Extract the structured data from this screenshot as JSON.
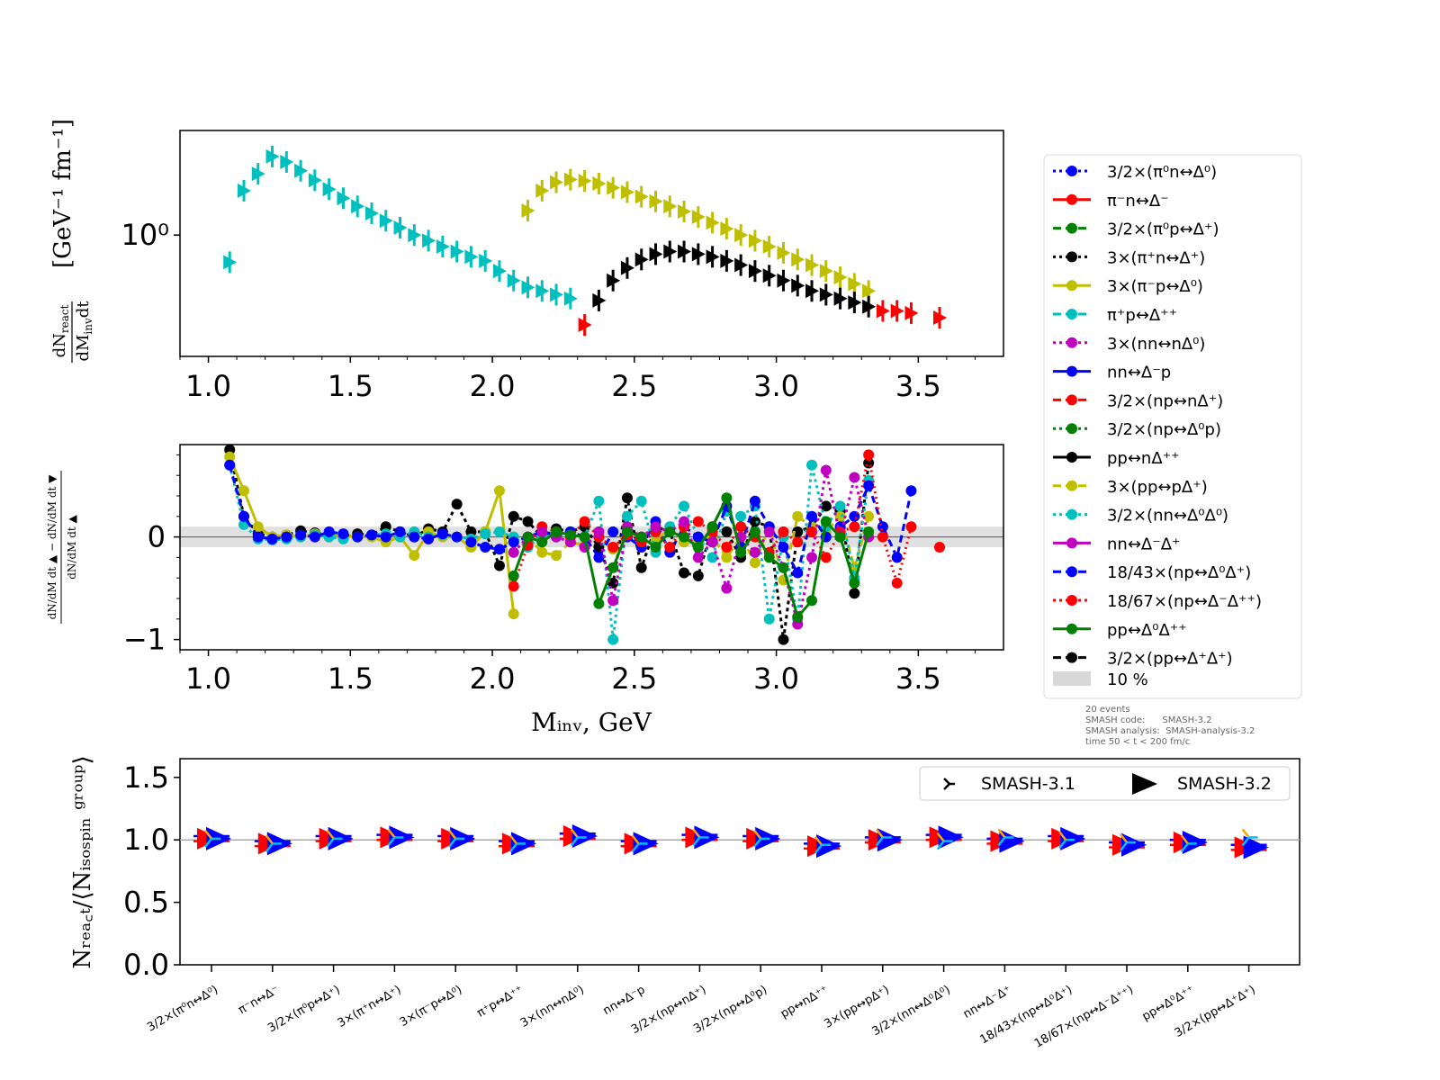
{
  "chart_data": [
    {
      "panel": "top",
      "type": "scatter",
      "ylabel_math": [
        "dN",
        "react",
        "dM",
        "inv",
        "dt"
      ],
      "yunits": "[GeV⁻¹ fm⁻¹]",
      "yscale": "log",
      "xlim": [
        0.9,
        3.8
      ],
      "ylim": [
        0.33,
        2.6
      ],
      "xticks": [
        "1.0",
        "1.5",
        "2.0",
        "2.5",
        "3.0",
        "3.5"
      ],
      "ytick_label": "10⁰",
      "ytick_value": 1.0,
      "series_groups": [
        {
          "color": "#00bfbf",
          "x": [
            1.075,
            1.125,
            1.175,
            1.225,
            1.275,
            1.325,
            1.375,
            1.425,
            1.475,
            1.525,
            1.575,
            1.625,
            1.675,
            1.725,
            1.775,
            1.825,
            1.875,
            1.925,
            1.975,
            2.025,
            2.075,
            2.125,
            2.175,
            2.225,
            2.275
          ],
          "y": [
            0.78,
            1.5,
            1.75,
            2.05,
            1.95,
            1.8,
            1.65,
            1.52,
            1.4,
            1.3,
            1.22,
            1.14,
            1.07,
            1.0,
            0.95,
            0.9,
            0.86,
            0.82,
            0.79,
            0.72,
            0.66,
            0.62,
            0.6,
            0.58,
            0.56
          ]
        },
        {
          "color": "#bfbf00",
          "x": [
            2.125,
            2.175,
            2.225,
            2.275,
            2.325,
            2.375,
            2.425,
            2.475,
            2.525,
            2.575,
            2.625,
            2.675,
            2.725,
            2.775,
            2.825,
            2.875,
            2.925,
            2.975,
            3.025,
            3.075,
            3.125,
            3.175,
            3.225,
            3.275,
            3.325
          ],
          "y": [
            1.25,
            1.5,
            1.62,
            1.66,
            1.64,
            1.6,
            1.54,
            1.48,
            1.42,
            1.36,
            1.3,
            1.24,
            1.18,
            1.12,
            1.06,
            1.0,
            0.95,
            0.9,
            0.85,
            0.8,
            0.76,
            0.72,
            0.68,
            0.64,
            0.6
          ]
        },
        {
          "color": "#000000",
          "x": [
            2.375,
            2.425,
            2.475,
            2.525,
            2.575,
            2.625,
            2.675,
            2.725,
            2.775,
            2.825,
            2.875,
            2.925,
            2.975,
            3.025,
            3.075,
            3.125,
            3.175,
            3.225,
            3.275,
            3.325
          ],
          "y": [
            0.55,
            0.66,
            0.74,
            0.8,
            0.84,
            0.86,
            0.86,
            0.84,
            0.82,
            0.79,
            0.76,
            0.72,
            0.69,
            0.66,
            0.63,
            0.6,
            0.58,
            0.56,
            0.54,
            0.52
          ]
        },
        {
          "color": "#ff0000",
          "x": [
            2.325,
            3.375,
            3.425,
            3.475,
            3.575
          ],
          "y": [
            0.44,
            0.5,
            0.5,
            0.49,
            0.47
          ]
        }
      ]
    },
    {
      "panel": "middle",
      "type": "line",
      "xlabel": "Mᵢₙᵥ, GeV",
      "xlim": [
        0.9,
        3.8
      ],
      "ylim": [
        -1.1,
        0.9
      ],
      "xticks": [
        "1.0",
        "1.5",
        "2.0",
        "2.5",
        "3.0",
        "3.5"
      ],
      "yticks": [
        {
          "label": "0",
          "value": 0
        },
        {
          "label": "−1",
          "value": -1
        }
      ],
      "band": [
        -0.1,
        0.1
      ],
      "series": [
        {
          "color": "#000000",
          "x": [
            1.075,
            1.125,
            1.175,
            1.225,
            1.275,
            1.325,
            1.375,
            1.425,
            1.475,
            1.525,
            1.575,
            1.625,
            1.675,
            1.725,
            1.775,
            1.825,
            1.875,
            1.925,
            1.975,
            2.025,
            2.075,
            2.125,
            2.175,
            2.225,
            2.275,
            2.325,
            2.375,
            2.425,
            2.475,
            2.525,
            2.575,
            2.625,
            2.675,
            2.725,
            2.775,
            2.825,
            2.875,
            2.925,
            2.975,
            3.025,
            3.075,
            3.125,
            3.175,
            3.225,
            3.275,
            3.325
          ],
          "y": [
            0.85,
            0.2,
            0.03,
            0.0,
            0.02,
            0.06,
            0.04,
            0.02,
            0.0,
            0.03,
            0.02,
            0.1,
            0.05,
            0.0,
            0.08,
            0.05,
            0.32,
            0.05,
            0.05,
            -0.28,
            0.2,
            0.15,
            0.0,
            0.08,
            0.05,
            0.1,
            -0.1,
            -0.45,
            0.38,
            -0.3,
            0.1,
            0.05,
            -0.35,
            -0.38,
            0.1,
            0.05,
            -0.2,
            0.15,
            0.1,
            -1.0,
            0.05,
            0.1,
            0.3,
            0.25,
            -0.55,
            0.72
          ]
        },
        {
          "color": "#bfbf00",
          "x": [
            1.075,
            1.125,
            1.175,
            1.225,
            1.275,
            1.325,
            1.375,
            1.425,
            1.475,
            1.525,
            1.575,
            1.625,
            1.675,
            1.725,
            1.775,
            1.825,
            1.875,
            1.925,
            1.975,
            2.025,
            2.075
          ],
          "y": [
            0.78,
            0.45,
            0.1,
            0.0,
            0.02,
            0.0,
            0.03,
            0.0,
            0.02,
            0.0,
            0.0,
            -0.05,
            0.0,
            -0.18,
            0.05,
            0.0,
            0.0,
            -0.1,
            0.05,
            0.45,
            -0.75
          ]
        },
        {
          "color": "#bfbf00",
          "x": [
            2.125,
            2.175,
            2.225,
            2.275,
            2.325,
            2.375,
            2.425,
            2.475,
            2.525,
            2.575,
            2.625,
            2.675,
            2.725,
            2.775,
            2.825,
            2.875,
            2.925,
            2.975,
            3.025,
            3.075,
            3.125,
            3.175,
            3.225,
            3.275,
            3.325
          ],
          "y": [
            0.0,
            -0.15,
            -0.18,
            -0.05,
            -0.08,
            0.0,
            -0.12,
            0.05,
            0.0,
            -0.05,
            0.1,
            -0.05,
            -0.05,
            0.0,
            -0.2,
            0.0,
            -0.25,
            0.1,
            -0.42,
            0.2,
            0.1,
            0.05,
            0.2,
            -0.3,
            0.2
          ]
        },
        {
          "color": "#00bfbf",
          "x": [
            1.075,
            1.125,
            1.175,
            1.225,
            1.275,
            1.325,
            1.375,
            1.425,
            1.475,
            1.525,
            1.575,
            1.625,
            1.675,
            1.725,
            1.775,
            1.825,
            1.875,
            1.925,
            1.975,
            2.025,
            2.075,
            2.125,
            2.175,
            2.225,
            2.275,
            2.325,
            2.375,
            2.425,
            2.475,
            2.525,
            2.575,
            2.625,
            2.675,
            2.725,
            2.775,
            2.825,
            2.875,
            2.925,
            2.975,
            3.025,
            3.075,
            3.125,
            3.175,
            3.225,
            3.275,
            3.325
          ],
          "y": [
            0.7,
            0.12,
            -0.02,
            -0.03,
            -0.02,
            0.0,
            0.02,
            0.0,
            -0.02,
            0.0,
            0.02,
            0.03,
            0.0,
            0.05,
            0.0,
            0.02,
            0.0,
            -0.02,
            0.03,
            0.05,
            0.0,
            -0.1,
            0.02,
            0.0,
            0.05,
            0.0,
            0.35,
            -1.0,
            0.2,
            0.35,
            -0.15,
            0.1,
            0.3,
            0.0,
            -0.2,
            0.25,
            0.2,
            0.3,
            -0.8,
            0.0,
            -0.8,
            0.7,
            0.1,
            0.3,
            -0.4,
            0.55
          ]
        },
        {
          "color": "#0000ff",
          "x": [
            1.075,
            1.125,
            1.175,
            1.225,
            1.275,
            1.325,
            1.375,
            1.425,
            1.475,
            1.525,
            1.575,
            1.625,
            1.675,
            1.725,
            1.775,
            1.825,
            1.875,
            1.925,
            1.975,
            2.025,
            2.075,
            2.125,
            2.175,
            2.225,
            2.275,
            2.325,
            2.375,
            2.425,
            2.475,
            2.525,
            2.575,
            2.625,
            2.675,
            2.725,
            2.775,
            2.825,
            2.875,
            2.925,
            2.975,
            3.025,
            3.075,
            3.125,
            3.175,
            3.225,
            3.275,
            3.325,
            3.375,
            3.425,
            3.475
          ],
          "y": [
            0.7,
            0.2,
            0.0,
            -0.02,
            0.0,
            0.02,
            0.0,
            0.05,
            0.03,
            0.0,
            0.02,
            0.0,
            0.05,
            0.0,
            -0.02,
            0.03,
            0.0,
            -0.05,
            -0.1,
            -0.12,
            -0.05,
            0.0,
            0.05,
            0.02,
            0.05,
            0.0,
            -0.2,
            0.05,
            0.0,
            -0.1,
            0.15,
            -0.15,
            0.1,
            0.0,
            -0.05,
            0.3,
            -0.1,
            0.35,
            0.1,
            -0.1,
            -0.35,
            0.2,
            0.0,
            0.1,
            0.2,
            0.5,
            0.1,
            -0.2,
            0.45
          ]
        },
        {
          "color": "#ff0000",
          "x": [
            2.075,
            2.125,
            2.175,
            2.225,
            2.275,
            2.325,
            2.375,
            2.425,
            2.475,
            2.525,
            2.575,
            2.625,
            2.675,
            2.725,
            2.775,
            2.825,
            2.875,
            2.925,
            2.975,
            3.025,
            3.075,
            3.125,
            3.175,
            3.225,
            3.275,
            3.325,
            3.375,
            3.425,
            3.475,
            3.525,
            3.575
          ],
          "y": [
            -0.48,
            -0.08,
            0.1,
            0.05,
            0.0,
            0.15,
            0.0,
            -0.1,
            0.02,
            -0.05,
            0.05,
            -0.1,
            0.1,
            0.15,
            0.05,
            -0.1,
            0.1,
            0.0,
            -0.15,
            0.05,
            -0.05,
            0.05,
            -0.2,
            0.05,
            0.1,
            0.8,
            0.0,
            -0.45,
            0.1,
            null,
            -0.1
          ]
        },
        {
          "color": "#bf00bf",
          "x": [
            2.075,
            2.125,
            2.175,
            2.225,
            2.275,
            2.325,
            2.375,
            2.425,
            2.475,
            2.525,
            2.575,
            2.625,
            2.675,
            2.725,
            2.775,
            2.825,
            2.875,
            2.925,
            2.975,
            3.025,
            3.075,
            3.125,
            3.175,
            3.225,
            3.275,
            3.325
          ],
          "y": [
            -0.15,
            0.0,
            0.05,
            0.0,
            -0.05,
            -0.1,
            0.05,
            -0.62,
            0.1,
            0.0,
            0.1,
            0.05,
            0.15,
            -0.2,
            -0.05,
            -0.5,
            0.0,
            -0.15,
            0.05,
            -0.3,
            -0.85,
            -0.2,
            0.65,
            0.0,
            0.58,
            0.0
          ]
        },
        {
          "color": "#008000",
          "x": [
            2.075,
            2.125,
            2.175,
            2.225,
            2.275,
            2.325,
            2.375,
            2.425,
            2.475,
            2.525,
            2.575,
            2.625,
            2.675,
            2.725,
            2.775,
            2.825,
            2.875,
            2.925,
            2.975,
            3.025,
            3.075,
            3.125,
            3.175,
            3.225,
            3.275,
            3.325
          ],
          "y": [
            -0.38,
            0.0,
            -0.05,
            0.05,
            0.02,
            0.0,
            -0.65,
            -0.3,
            0.05,
            0.0,
            -0.1,
            0.05,
            0.0,
            -0.1,
            0.1,
            0.38,
            -0.15,
            0.05,
            -0.2,
            -0.3,
            -0.78,
            -0.62,
            0.15,
            0.0,
            -0.45,
            0.05
          ]
        }
      ]
    },
    {
      "panel": "bottom",
      "type": "scatter",
      "ylabel": "Nᵣₑₐ꜀ₜ/⟨Nᵢₛₒₛₚᵢₙ ᵍʳᵒᵘᵖ⟩",
      "ylim": [
        0.0,
        1.65
      ],
      "yticks": [
        "0.0",
        "0.5",
        "1.0",
        "1.5"
      ],
      "categories": [
        "3/2×(π⁰n↔Δ⁰)",
        "π⁻n↔Δ⁻",
        "3/2×(π⁰p↔Δ⁺)",
        "3×(π⁺n↔Δ⁺)",
        "3×(π⁻p↔Δ⁰)",
        "π⁺p↔Δ⁺⁺",
        "3×(nn↔nΔ⁰)",
        "nn↔Δ⁻p",
        "3/2×(np↔nΔ⁺)",
        "3/2×(np↔Δ⁰p)",
        "pp↔nΔ⁺⁺",
        "3×(pp↔pΔ⁺)",
        "3/2×(nn↔Δ⁰Δ⁰)",
        "nn↔Δ⁻Δ⁺",
        "18/43×(np↔Δ⁰Δ⁺)",
        "18/67×(np↔Δ⁻Δ⁺⁺)",
        "pp↔Δ⁰Δ⁺⁺",
        "3/2×(pp↔Δ⁺Δ⁺)"
      ],
      "series": [
        {
          "name": "SMASH-3.1",
          "marker": "tri",
          "values": [
            1.01,
            0.97,
            1.01,
            1.02,
            1.01,
            0.97,
            1.02,
            0.97,
            1.02,
            1.01,
            0.96,
            1.02,
            0.99,
            1.02,
            1.0,
            0.98,
            0.97,
            1.02
          ]
        },
        {
          "name": "SMASH-3.2",
          "marker": "triangle-right",
          "values": [
            1.01,
            0.97,
            1.01,
            1.02,
            1.01,
            0.97,
            1.03,
            0.97,
            1.02,
            1.01,
            0.95,
            1.0,
            1.02,
            0.99,
            1.01,
            0.96,
            0.98,
            0.94
          ]
        }
      ],
      "legend": [
        "SMASH-3.1",
        "SMASH-3.2"
      ],
      "legend_position": "top-right"
    }
  ],
  "legend": {
    "items": [
      {
        "label": "3/2×(π⁰n↔Δ⁰)",
        "color": "#0000ff",
        "style": "dotted"
      },
      {
        "label": "π⁻n↔Δ⁻",
        "color": "#ff0000",
        "style": "solid"
      },
      {
        "label": "3/2×(π⁰p↔Δ⁺)",
        "color": "#008000",
        "style": "dashed"
      },
      {
        "label": "3×(π⁺n↔Δ⁺)",
        "color": "#000000",
        "style": "dotted"
      },
      {
        "label": "3×(π⁻p↔Δ⁰)",
        "color": "#bfbf00",
        "style": "solid"
      },
      {
        "label": "π⁺p↔Δ⁺⁺",
        "color": "#00bfbf",
        "style": "dashed"
      },
      {
        "label": "3×(nn↔nΔ⁰)",
        "color": "#bf00bf",
        "style": "dotted"
      },
      {
        "label": "nn↔Δ⁻p",
        "color": "#0000ff",
        "style": "solid"
      },
      {
        "label": "3/2×(np↔nΔ⁺)",
        "color": "#ff0000",
        "style": "dashed"
      },
      {
        "label": "3/2×(np↔Δ⁰p)",
        "color": "#008000",
        "style": "dotted"
      },
      {
        "label": "pp↔nΔ⁺⁺",
        "color": "#000000",
        "style": "solid"
      },
      {
        "label": "3×(pp↔pΔ⁺)",
        "color": "#bfbf00",
        "style": "dashed"
      },
      {
        "label": "3/2×(nn↔Δ⁰Δ⁰)",
        "color": "#00bfbf",
        "style": "dotted"
      },
      {
        "label": "nn↔Δ⁻Δ⁺",
        "color": "#bf00bf",
        "style": "solid"
      },
      {
        "label": "18/43×(np↔Δ⁰Δ⁺)",
        "color": "#0000ff",
        "style": "dashed"
      },
      {
        "label": "18/67×(np↔Δ⁻Δ⁺⁺)",
        "color": "#ff0000",
        "style": "dotted"
      },
      {
        "label": "pp↔Δ⁰Δ⁺⁺",
        "color": "#008000",
        "style": "solid"
      },
      {
        "label": "3/2×(pp↔Δ⁺Δ⁺)",
        "color": "#000000",
        "style": "dashed"
      }
    ],
    "band_label": "10 %"
  },
  "info": {
    "line1": "20 events",
    "line2": "SMASH code:      SMASH-3.2",
    "line3": "SMASH analysis:  SMASH-analysis-3.2",
    "line4": "time 50 < t < 200 fm/c"
  }
}
